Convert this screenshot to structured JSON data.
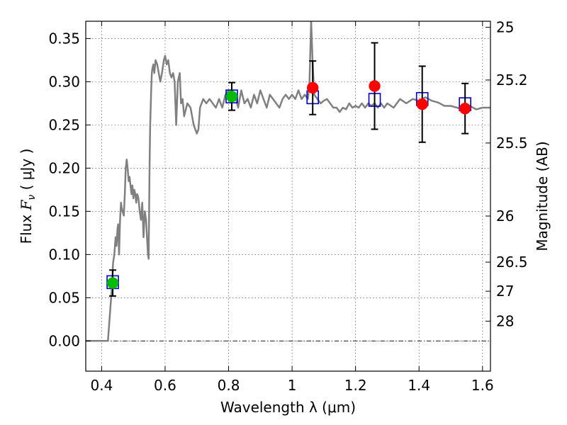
{
  "chart_data": {
    "type": "scatter",
    "xlabel": "Wavelength  λ (μm)",
    "ylabel_prefix": "Flux  ",
    "ylabel_symbol": "F",
    "ylabel_sub": "ν",
    "ylabel_suffix": "  ( μJy )",
    "y2label": "Magnitude (AB)",
    "xlim": [
      0.35,
      1.625
    ],
    "ylim": [
      -0.035,
      0.37
    ],
    "grid": true,
    "xticks": [
      {
        "value": 0.4,
        "label": "0.4"
      },
      {
        "value": 0.6,
        "label": "0.6"
      },
      {
        "value": 0.8,
        "label": "0.8"
      },
      {
        "value": 1.0,
        "label": "1"
      },
      {
        "value": 1.2,
        "label": "1.2"
      },
      {
        "value": 1.4,
        "label": "1.4"
      },
      {
        "value": 1.6,
        "label": "1.6"
      }
    ],
    "yticks": [
      {
        "value": 0.0,
        "label": "0.00"
      },
      {
        "value": 0.05,
        "label": "0.05"
      },
      {
        "value": 0.1,
        "label": "0.10"
      },
      {
        "value": 0.15,
        "label": "0.15"
      },
      {
        "value": 0.2,
        "label": "0.20"
      },
      {
        "value": 0.25,
        "label": "0.25"
      },
      {
        "value": 0.3,
        "label": "0.30"
      },
      {
        "value": 0.35,
        "label": "0.35"
      }
    ],
    "magnitude_ticks": [
      {
        "value": 25,
        "label": "25"
      },
      {
        "value": 25.2,
        "label": "25.2"
      },
      {
        "value": 25.5,
        "label": "25.5"
      },
      {
        "value": 26,
        "label": "26"
      },
      {
        "value": 26.5,
        "label": "26.5"
      },
      {
        "value": 27,
        "label": "27"
      },
      {
        "value": 28,
        "label": "28"
      }
    ],
    "spectrum": {
      "color": "#808080",
      "x": [
        0.35,
        0.41,
        0.42,
        0.428,
        0.432,
        0.436,
        0.44,
        0.444,
        0.447,
        0.45,
        0.452,
        0.455,
        0.458,
        0.461,
        0.463,
        0.466,
        0.47,
        0.473,
        0.476,
        0.479,
        0.482,
        0.485,
        0.488,
        0.491,
        0.494,
        0.497,
        0.5,
        0.503,
        0.506,
        0.509,
        0.512,
        0.516,
        0.52,
        0.524,
        0.528,
        0.532,
        0.536,
        0.54,
        0.543,
        0.546,
        0.548,
        0.551,
        0.553,
        0.556,
        0.558,
        0.56,
        0.563,
        0.566,
        0.57,
        0.575,
        0.58,
        0.585,
        0.59,
        0.596,
        0.6,
        0.605,
        0.61,
        0.615,
        0.62,
        0.625,
        0.63,
        0.635,
        0.64,
        0.646,
        0.65,
        0.655,
        0.66,
        0.67,
        0.68,
        0.69,
        0.7,
        0.705,
        0.71,
        0.72,
        0.73,
        0.74,
        0.75,
        0.76,
        0.77,
        0.78,
        0.79,
        0.8,
        0.81,
        0.82,
        0.83,
        0.84,
        0.85,
        0.86,
        0.87,
        0.88,
        0.89,
        0.9,
        0.91,
        0.92,
        0.93,
        0.94,
        0.95,
        0.96,
        0.97,
        0.98,
        0.99,
        1.0,
        1.01,
        1.02,
        1.03,
        1.04,
        1.05,
        1.055,
        1.06,
        1.065,
        1.07,
        1.08,
        1.09,
        1.1,
        1.11,
        1.12,
        1.13,
        1.14,
        1.15,
        1.16,
        1.17,
        1.18,
        1.19,
        1.2,
        1.21,
        1.22,
        1.23,
        1.24,
        1.25,
        1.26,
        1.27,
        1.28,
        1.29,
        1.3,
        1.32,
        1.34,
        1.36,
        1.38,
        1.4,
        1.42,
        1.44,
        1.46,
        1.48,
        1.5,
        1.52,
        1.54,
        1.56,
        1.58,
        1.6,
        1.625
      ],
      "y": [
        0.0,
        0.0,
        0.0,
        0.04,
        0.06,
        0.09,
        0.1,
        0.12,
        0.11,
        0.13,
        0.135,
        0.1,
        0.14,
        0.16,
        0.155,
        0.15,
        0.145,
        0.17,
        0.2,
        0.21,
        0.2,
        0.185,
        0.19,
        0.18,
        0.17,
        0.18,
        0.165,
        0.175,
        0.17,
        0.16,
        0.17,
        0.165,
        0.15,
        0.14,
        0.16,
        0.12,
        0.15,
        0.14,
        0.12,
        0.1,
        0.095,
        0.2,
        0.25,
        0.29,
        0.31,
        0.315,
        0.32,
        0.31,
        0.325,
        0.32,
        0.31,
        0.3,
        0.31,
        0.325,
        0.33,
        0.32,
        0.325,
        0.31,
        0.305,
        0.31,
        0.3,
        0.25,
        0.3,
        0.31,
        0.275,
        0.28,
        0.26,
        0.275,
        0.27,
        0.25,
        0.24,
        0.245,
        0.27,
        0.28,
        0.275,
        0.28,
        0.275,
        0.27,
        0.28,
        0.27,
        0.285,
        0.29,
        0.28,
        0.285,
        0.27,
        0.29,
        0.275,
        0.28,
        0.27,
        0.285,
        0.275,
        0.29,
        0.28,
        0.27,
        0.285,
        0.28,
        0.275,
        0.27,
        0.28,
        0.285,
        0.28,
        0.285,
        0.28,
        0.29,
        0.28,
        0.285,
        0.28,
        0.3,
        0.37,
        0.32,
        0.285,
        0.28,
        0.275,
        0.278,
        0.28,
        0.275,
        0.27,
        0.27,
        0.265,
        0.27,
        0.268,
        0.275,
        0.27,
        0.272,
        0.27,
        0.275,
        0.27,
        0.275,
        0.272,
        0.275,
        0.27,
        0.275,
        0.27,
        0.275,
        0.27,
        0.28,
        0.275,
        0.28,
        0.278,
        0.282,
        0.278,
        0.276,
        0.272,
        0.272,
        0.27,
        0.268,
        0.272,
        0.268,
        0.27,
        0.27
      ]
    },
    "model_points": {
      "color": "#0000cc",
      "x": [
        0.435,
        0.81,
        1.065,
        1.26,
        1.41,
        1.545
      ],
      "y": [
        0.068,
        0.283,
        0.282,
        0.279,
        0.28,
        0.274
      ]
    },
    "observations": [
      {
        "x": 0.435,
        "y": 0.067,
        "err_low": 0.052,
        "err_high": 0.082,
        "color": "#00bb00"
      },
      {
        "x": 0.81,
        "y": 0.283,
        "err_low": 0.267,
        "err_high": 0.299,
        "color": "#00bb00"
      },
      {
        "x": 1.065,
        "y": 0.293,
        "err_low": 0.262,
        "err_high": 0.324,
        "color": "#ff0000"
      },
      {
        "x": 1.26,
        "y": 0.295,
        "err_low": 0.245,
        "err_high": 0.345,
        "color": "#ff0000"
      },
      {
        "x": 1.41,
        "y": 0.274,
        "err_low": 0.23,
        "err_high": 0.318,
        "color": "#ff0000"
      },
      {
        "x": 1.545,
        "y": 0.269,
        "err_low": 0.24,
        "err_high": 0.298,
        "color": "#ff0000"
      }
    ]
  }
}
